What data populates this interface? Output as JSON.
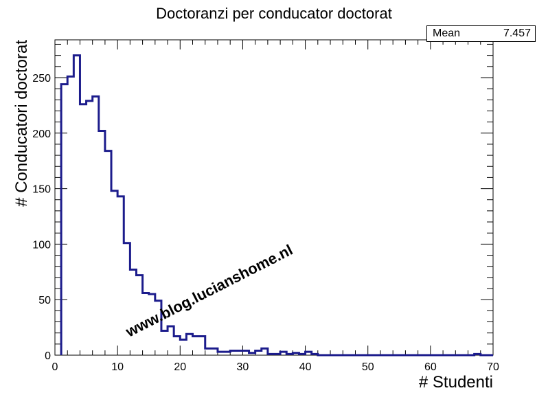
{
  "chart_data": {
    "type": "histogram",
    "title": "Doctoranzi per conducator doctorat",
    "xlabel": "# Studenti",
    "ylabel": "# Conducatori doctorat",
    "xlim": [
      0,
      70
    ],
    "ylim": [
      0,
      284
    ],
    "x_ticks": [
      0,
      10,
      20,
      30,
      40,
      50,
      60,
      70
    ],
    "y_ticks": [
      0,
      50,
      100,
      150,
      200,
      250
    ],
    "bin_width": 1,
    "bin_start": 1,
    "values": [
      244,
      251,
      270,
      226,
      229,
      233,
      202,
      184,
      148,
      143,
      101,
      77,
      72,
      56,
      55,
      49,
      22,
      26,
      17,
      14,
      19,
      17,
      17,
      6,
      6,
      3,
      3,
      4,
      4,
      4,
      2,
      4,
      6,
      1,
      1,
      3,
      1,
      2,
      1,
      3,
      1,
      0,
      0,
      0,
      0,
      0,
      0,
      0,
      0,
      0,
      0,
      0,
      0,
      0,
      0,
      0,
      0,
      0,
      0,
      0,
      0,
      0,
      0,
      0,
      0,
      0,
      1,
      0,
      0
    ],
    "line_color": "#1c1c8c",
    "grid": false,
    "stats": {
      "label": "Mean",
      "value": "7.457"
    },
    "watermark": "www.blog.lucianshome.nl"
  }
}
